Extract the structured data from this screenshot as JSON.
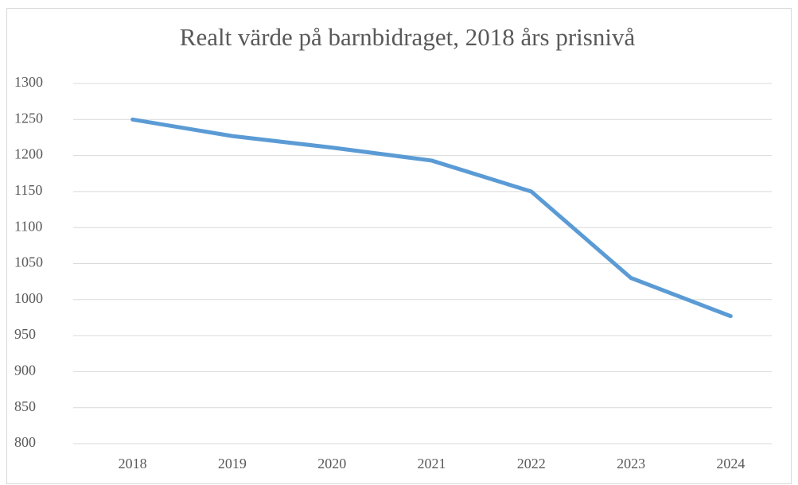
{
  "chart_data": {
    "type": "line",
    "title": "Realt värde på barnbidraget, 2018 års prisnivå",
    "categories": [
      "2018",
      "2019",
      "2020",
      "2021",
      "2022",
      "2023",
      "2024"
    ],
    "series": [
      {
        "name": "Realt värde",
        "color": "#5b9bd5",
        "values": [
          1250,
          1227,
          1211,
          1193,
          1150,
          1030,
          977
        ]
      }
    ],
    "ylim": [
      800,
      1300
    ],
    "yticks": [
      800,
      850,
      900,
      950,
      1000,
      1050,
      1100,
      1150,
      1200,
      1250,
      1300
    ],
    "grid": true
  }
}
